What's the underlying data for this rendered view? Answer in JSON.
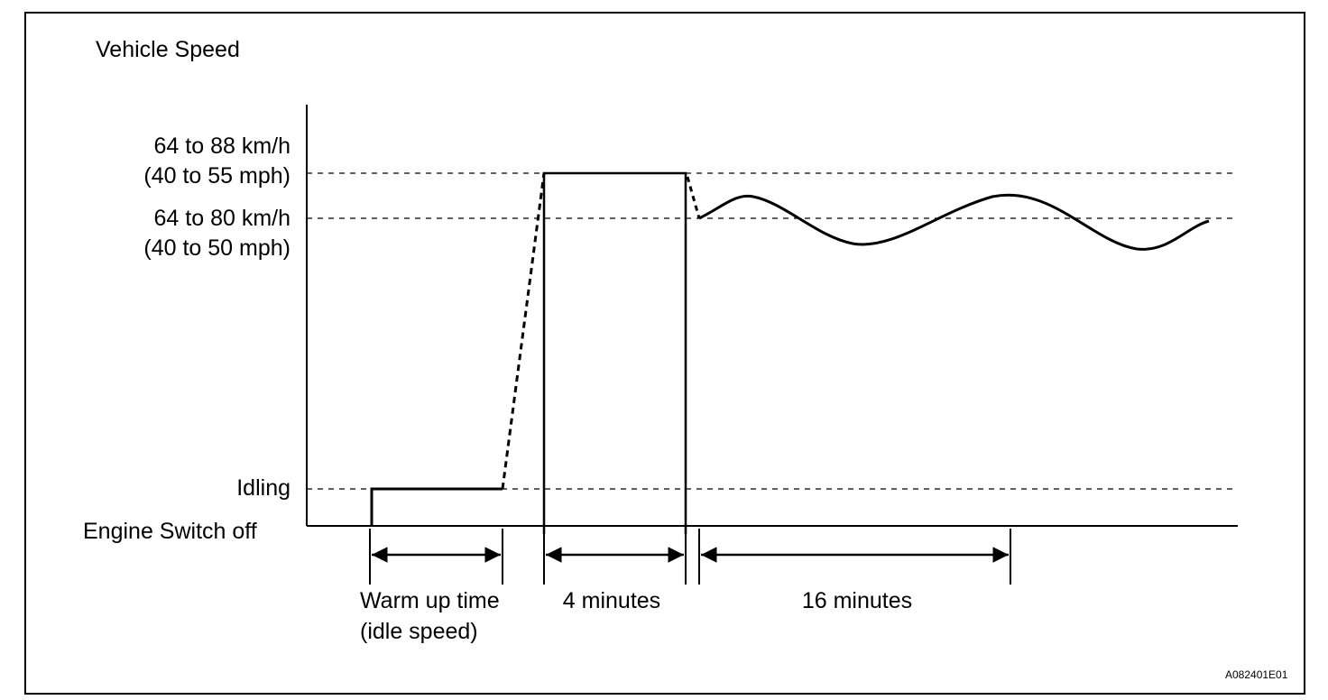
{
  "diagram": {
    "title": "Vehicle Speed",
    "levels": {
      "high_line1": "64 to 88 km/h",
      "high_line2": "(40 to 55 mph)",
      "mid_line1": "64 to 80 km/h",
      "mid_line2": "(40 to 50 mph)",
      "idle": "Idling",
      "off": "Engine Switch off"
    },
    "intervals": {
      "warmup_line1": "Warm up time",
      "warmup_line2": "(idle speed)",
      "four_min": "4 minutes",
      "sixteen_min": "16 minutes"
    },
    "figure_code": "A082401E01"
  }
}
